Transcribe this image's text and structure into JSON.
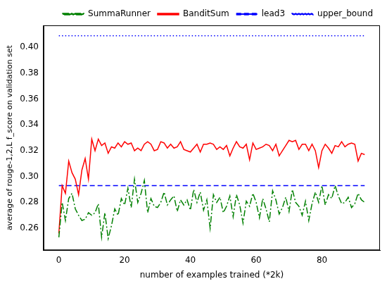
{
  "chart_data": {
    "type": "line",
    "x_label": "number of examples trained (*2k)",
    "y_label": "average of rouge-1,2,L f_score on validation set",
    "x": [
      0,
      1,
      2,
      3,
      4,
      5,
      6,
      7,
      8,
      9,
      10,
      11,
      12,
      13,
      14,
      15,
      16,
      17,
      18,
      19,
      20,
      21,
      22,
      23,
      24,
      25,
      26,
      27,
      28,
      29,
      30,
      31,
      32,
      33,
      34,
      35,
      36,
      37,
      38,
      39,
      40,
      41,
      42,
      43,
      44,
      45,
      46,
      47,
      48,
      49,
      50,
      51,
      52,
      53,
      54,
      55,
      56,
      57,
      58,
      59,
      60,
      61,
      62,
      63,
      64,
      65,
      66,
      67,
      68,
      69,
      70,
      71,
      72,
      73,
      74,
      75,
      76,
      77,
      78,
      79,
      80,
      81,
      82,
      83,
      84,
      85,
      86,
      87,
      88,
      89,
      90,
      91,
      92,
      93
    ],
    "xlim": [
      -4.65,
      97.65
    ],
    "xticks": [
      0,
      20,
      40,
      60,
      80
    ],
    "ylim": [
      0.243,
      0.417
    ],
    "yticks": [
      0.26,
      0.28,
      {
        "value": 0.3,
        "label": "0.30"
      },
      0.32,
      0.34,
      0.36,
      0.38,
      {
        "value": 0.4,
        "label": "0.40"
      }
    ],
    "grid": false,
    "legend": "upper right",
    "series": [
      {
        "name": "SummaRunner",
        "color": "#008000",
        "line_style": "dashdot",
        "values": [
          0.253,
          0.28,
          0.266,
          0.283,
          0.287,
          0.275,
          0.27,
          0.266,
          0.267,
          0.272,
          0.27,
          0.272,
          0.279,
          0.253,
          0.272,
          0.252,
          0.262,
          0.275,
          0.27,
          0.283,
          0.278,
          0.291,
          0.276,
          0.298,
          0.28,
          0.287,
          0.297,
          0.272,
          0.283,
          0.277,
          0.276,
          0.28,
          0.288,
          0.278,
          0.282,
          0.285,
          0.273,
          0.282,
          0.278,
          0.282,
          0.274,
          0.29,
          0.28,
          0.288,
          0.274,
          0.282,
          0.26,
          0.286,
          0.28,
          0.284,
          0.272,
          0.277,
          0.285,
          0.269,
          0.286,
          0.278,
          0.264,
          0.281,
          0.277,
          0.287,
          0.28,
          0.268,
          0.283,
          0.275,
          0.265,
          0.289,
          0.282,
          0.271,
          0.276,
          0.284,
          0.273,
          0.29,
          0.28,
          0.277,
          0.27,
          0.281,
          0.266,
          0.279,
          0.288,
          0.28,
          0.293,
          0.278,
          0.286,
          0.283,
          0.293,
          0.285,
          0.279,
          0.28,
          0.284,
          0.276,
          0.279,
          0.287,
          0.282,
          0.28
        ]
      },
      {
        "name": "BanditSum",
        "color": "#ff0000",
        "line_style": "solid",
        "values": [
          0.256,
          0.293,
          0.287,
          0.312,
          0.303,
          0.298,
          0.286,
          0.305,
          0.314,
          0.298,
          0.329,
          0.32,
          0.329,
          0.324,
          0.326,
          0.318,
          0.323,
          0.322,
          0.326,
          0.323,
          0.327,
          0.325,
          0.326,
          0.32,
          0.322,
          0.32,
          0.325,
          0.327,
          0.325,
          0.32,
          0.321,
          0.327,
          0.326,
          0.322,
          0.325,
          0.322,
          0.323,
          0.327,
          0.321,
          0.32,
          0.319,
          0.322,
          0.325,
          0.319,
          0.325,
          0.325,
          0.326,
          0.325,
          0.321,
          0.323,
          0.321,
          0.324,
          0.316,
          0.322,
          0.327,
          0.323,
          0.322,
          0.325,
          0.313,
          0.326,
          0.321,
          0.322,
          0.323,
          0.325,
          0.324,
          0.32,
          0.325,
          0.316,
          0.32,
          0.324,
          0.328,
          0.327,
          0.328,
          0.321,
          0.325,
          0.325,
          0.32,
          0.325,
          0.32,
          0.307,
          0.32,
          0.325,
          0.322,
          0.318,
          0.324,
          0.323,
          0.327,
          0.323,
          0.325,
          0.326,
          0.325,
          0.312,
          0.318,
          0.317
        ]
      },
      {
        "name": "lead3",
        "color": "#0000ff",
        "line_style": "dashed",
        "values": [
          0.293,
          0.293,
          0.293,
          0.293,
          0.293,
          0.293,
          0.293,
          0.293,
          0.293,
          0.293,
          0.293,
          0.293,
          0.293,
          0.293,
          0.293,
          0.293,
          0.293,
          0.293,
          0.293,
          0.293,
          0.293,
          0.293,
          0.293,
          0.293,
          0.293,
          0.293,
          0.293,
          0.293,
          0.293,
          0.293,
          0.293,
          0.293,
          0.293,
          0.293,
          0.293,
          0.293,
          0.293,
          0.293,
          0.293,
          0.293,
          0.293,
          0.293,
          0.293,
          0.293,
          0.293,
          0.293,
          0.293,
          0.293,
          0.293,
          0.293,
          0.293,
          0.293,
          0.293,
          0.293,
          0.293,
          0.293,
          0.293,
          0.293,
          0.293,
          0.293,
          0.293,
          0.293,
          0.293,
          0.293,
          0.293,
          0.293,
          0.293,
          0.293,
          0.293,
          0.293,
          0.293,
          0.293,
          0.293,
          0.293,
          0.293,
          0.293,
          0.293,
          0.293,
          0.293,
          0.293,
          0.293,
          0.293,
          0.293,
          0.293,
          0.293,
          0.293,
          0.293,
          0.293,
          0.293,
          0.293,
          0.293,
          0.293,
          0.293,
          0.293
        ]
      },
      {
        "name": "upper_bound",
        "color": "#0000ff",
        "line_style": "dotted",
        "values": [
          0.409,
          0.409,
          0.409,
          0.409,
          0.409,
          0.409,
          0.409,
          0.409,
          0.409,
          0.409,
          0.409,
          0.409,
          0.409,
          0.409,
          0.409,
          0.409,
          0.409,
          0.409,
          0.409,
          0.409,
          0.409,
          0.409,
          0.409,
          0.409,
          0.409,
          0.409,
          0.409,
          0.409,
          0.409,
          0.409,
          0.409,
          0.409,
          0.409,
          0.409,
          0.409,
          0.409,
          0.409,
          0.409,
          0.409,
          0.409,
          0.409,
          0.409,
          0.409,
          0.409,
          0.409,
          0.409,
          0.409,
          0.409,
          0.409,
          0.409,
          0.409,
          0.409,
          0.409,
          0.409,
          0.409,
          0.409,
          0.409,
          0.409,
          0.409,
          0.409,
          0.409,
          0.409,
          0.409,
          0.409,
          0.409,
          0.409,
          0.409,
          0.409,
          0.409,
          0.409,
          0.409,
          0.409,
          0.409,
          0.409,
          0.409,
          0.409,
          0.409,
          0.409,
          0.409,
          0.409,
          0.409,
          0.409,
          0.409,
          0.409,
          0.409,
          0.409,
          0.409,
          0.409,
          0.409,
          0.409,
          0.409,
          0.409,
          0.409,
          0.409
        ]
      }
    ]
  }
}
